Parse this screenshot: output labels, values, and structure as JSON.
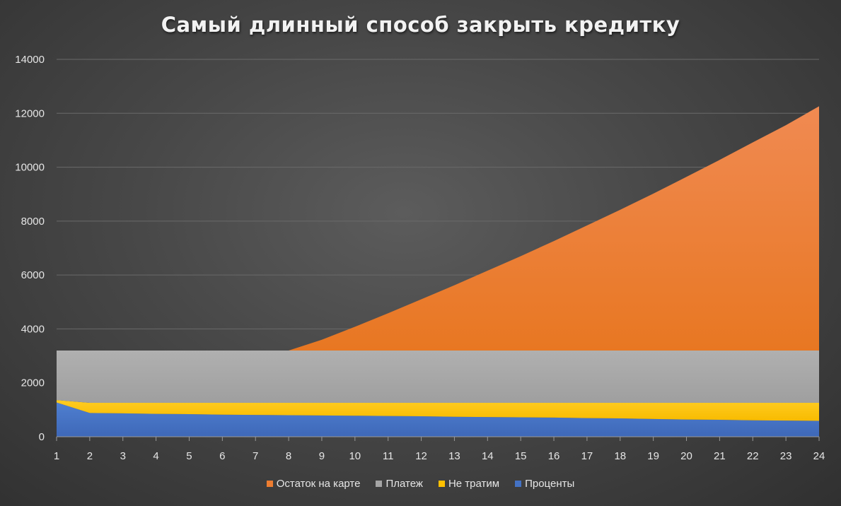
{
  "chart_data": {
    "type": "area",
    "stacked": true,
    "title": "Самый длинный способ закрыть кредитку",
    "categories": [
      "1",
      "2",
      "3",
      "4",
      "5",
      "6",
      "7",
      "8",
      "9",
      "10",
      "11",
      "12",
      "13",
      "14",
      "15",
      "16",
      "17",
      "18",
      "19",
      "20",
      "21",
      "22",
      "23",
      "24"
    ],
    "ylim": [
      0,
      14000
    ],
    "yticks": [
      "0",
      "2000",
      "4000",
      "6000",
      "8000",
      "10000",
      "12000",
      "14000"
    ],
    "grid": true,
    "legend_position": "bottom",
    "series": [
      {
        "name": "Проценты",
        "color": "#4472c4",
        "values": [
          1270,
          880,
          870,
          850,
          840,
          820,
          810,
          800,
          790,
          780,
          770,
          760,
          740,
          730,
          720,
          710,
          690,
          680,
          660,
          640,
          630,
          610,
          600,
          590
        ]
      },
      {
        "name": "Не тратим",
        "color": "#ffc000",
        "values": [
          90,
          380,
          390,
          410,
          420,
          440,
          450,
          460,
          470,
          480,
          490,
          500,
          520,
          530,
          540,
          550,
          570,
          580,
          600,
          620,
          630,
          650,
          660,
          670
        ]
      },
      {
        "name": "Платеж",
        "color": "#a5a5a5",
        "values": [
          1840,
          1940,
          1940,
          1940,
          1940,
          1940,
          1940,
          1940,
          1940,
          1940,
          1940,
          1940,
          1940,
          1940,
          1940,
          1940,
          1940,
          1940,
          1940,
          1940,
          1940,
          1940,
          1940,
          1940
        ]
      },
      {
        "name": "Остаток на карте",
        "color": "#ed7d31",
        "values": [
          0,
          0,
          0,
          0,
          0,
          0,
          0,
          0,
          400,
          880,
          1380,
          1900,
          2420,
          2960,
          3500,
          4060,
          4640,
          5220,
          5820,
          6440,
          7070,
          7720,
          8360,
          9060
        ]
      }
    ]
  },
  "legend_order": [
    "Остаток на карте",
    "Платеж",
    "Не тратим",
    "Проценты"
  ]
}
